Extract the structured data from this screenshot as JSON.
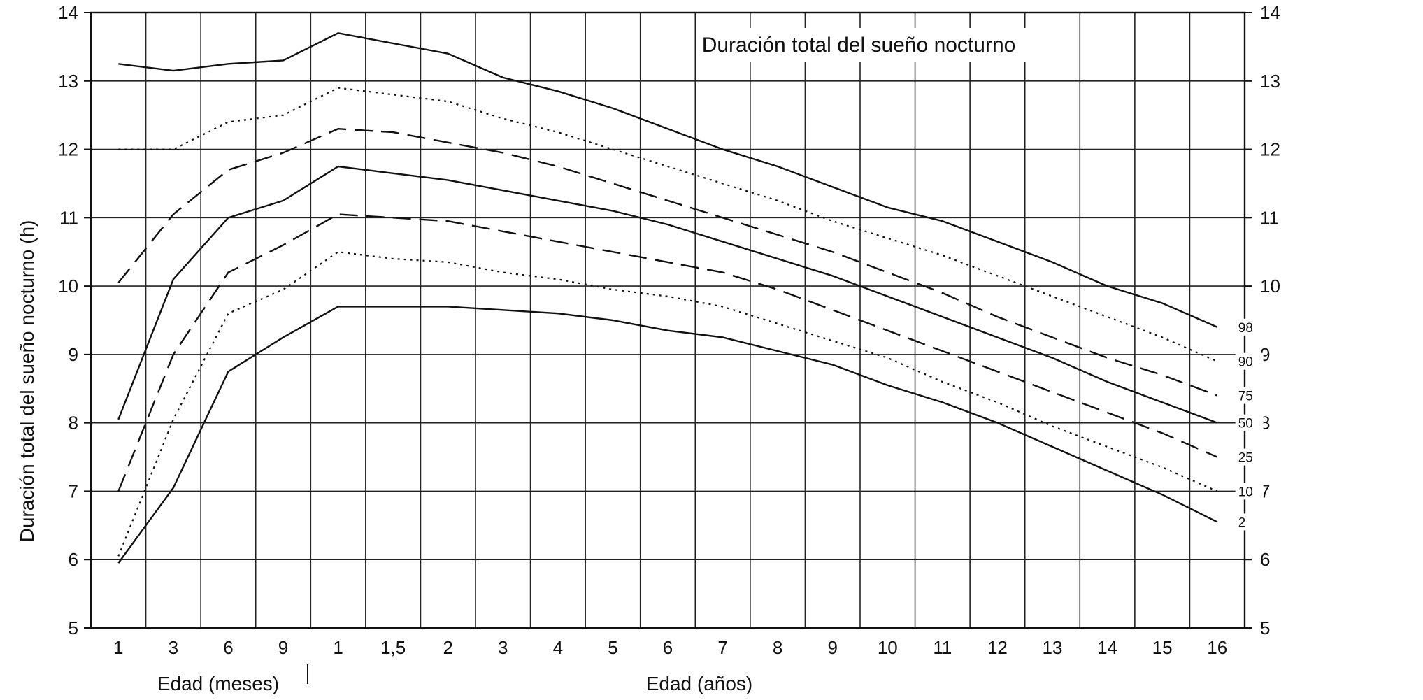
{
  "chart_data": {
    "type": "line",
    "title": "Duración total del sueño nocturno",
    "ylabel": "Duración total del sueño nocturno (h)",
    "xlabel_months": "Edad (meses)",
    "xlabel_years": "Edad (años)",
    "ylim": [
      5,
      14
    ],
    "yticks": [
      "5",
      "6",
      "7",
      "8",
      "9",
      "10",
      "11",
      "12",
      "13",
      "14"
    ],
    "grid": true,
    "x": [
      "1",
      "3",
      "6",
      "9",
      "1",
      "1,5",
      "2",
      "3",
      "4",
      "5",
      "6",
      "7",
      "8",
      "9",
      "10",
      "11",
      "12",
      "13",
      "14",
      "15",
      "16"
    ],
    "series": [
      {
        "name": "98",
        "style": "solid",
        "values": [
          13.25,
          13.15,
          13.25,
          13.3,
          13.7,
          13.55,
          13.4,
          13.05,
          12.85,
          12.6,
          12.3,
          12.0,
          11.75,
          11.45,
          11.15,
          10.95,
          10.65,
          10.35,
          10.0,
          9.75,
          9.4
        ]
      },
      {
        "name": "90",
        "style": "dotted",
        "values": [
          12.0,
          12.0,
          12.4,
          12.5,
          12.9,
          12.8,
          12.7,
          12.45,
          12.25,
          12.0,
          11.75,
          11.5,
          11.25,
          10.95,
          10.7,
          10.45,
          10.15,
          9.85,
          9.55,
          9.25,
          8.9
        ]
      },
      {
        "name": "75",
        "style": "dashed",
        "values": [
          10.05,
          11.05,
          11.7,
          11.95,
          12.3,
          12.25,
          12.1,
          11.95,
          11.75,
          11.5,
          11.25,
          11.0,
          10.75,
          10.5,
          10.2,
          9.9,
          9.55,
          9.25,
          8.95,
          8.7,
          8.4
        ]
      },
      {
        "name": "50",
        "style": "solid",
        "values": [
          8.05,
          10.1,
          11.0,
          11.25,
          11.75,
          11.65,
          11.55,
          11.4,
          11.25,
          11.1,
          10.9,
          10.65,
          10.4,
          10.15,
          9.85,
          9.55,
          9.25,
          8.95,
          8.6,
          8.3,
          8.0
        ]
      },
      {
        "name": "25",
        "style": "dashed",
        "values": [
          7.0,
          9.0,
          10.2,
          10.6,
          11.05,
          11.0,
          10.95,
          10.8,
          10.65,
          10.5,
          10.35,
          10.2,
          9.95,
          9.65,
          9.35,
          9.05,
          8.75,
          8.45,
          8.15,
          7.85,
          7.5
        ]
      },
      {
        "name": "10",
        "style": "dotted",
        "values": [
          6.05,
          8.05,
          9.6,
          9.95,
          10.5,
          10.4,
          10.35,
          10.2,
          10.1,
          9.95,
          9.85,
          9.7,
          9.45,
          9.2,
          8.95,
          8.6,
          8.3,
          7.95,
          7.65,
          7.35,
          7.0
        ]
      },
      {
        "name": "2",
        "style": "solid",
        "values": [
          5.95,
          7.05,
          8.75,
          9.25,
          9.7,
          9.7,
          9.7,
          9.65,
          9.6,
          9.5,
          9.35,
          9.25,
          9.05,
          8.85,
          8.55,
          8.3,
          8.0,
          7.65,
          7.3,
          6.95,
          6.55
        ]
      }
    ]
  }
}
